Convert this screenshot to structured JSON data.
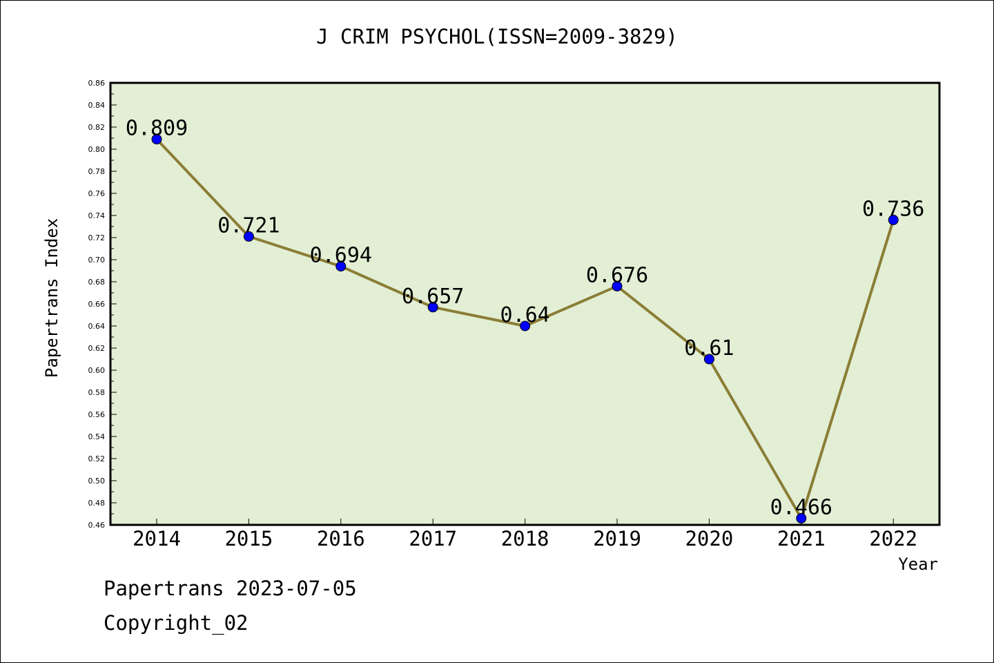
{
  "chart_data": {
    "type": "line",
    "title": "J CRIM PSYCHOL(ISSN=2009-3829)",
    "xlabel": "Year",
    "ylabel": "Papertrans Index",
    "categories": [
      "2014",
      "2015",
      "2016",
      "2017",
      "2018",
      "2019",
      "2020",
      "2021",
      "2022"
    ],
    "series": [
      {
        "values": [
          0.809,
          0.721,
          0.694,
          0.657,
          0.64,
          0.676,
          0.61,
          0.466,
          0.736
        ]
      }
    ],
    "data_labels": [
      "0.809",
      "0.721",
      "0.694",
      "0.657",
      "0.64",
      "0.676",
      "0.61",
      "0.466",
      "0.736"
    ],
    "ylim": [
      0.46,
      0.86
    ],
    "yticks": [
      "0.46",
      "0.48",
      "0.50",
      "0.52",
      "0.54",
      "0.56",
      "0.58",
      "0.60",
      "0.62",
      "0.64",
      "0.66",
      "0.68",
      "0.70",
      "0.72",
      "0.74",
      "0.76",
      "0.78",
      "0.80",
      "0.82",
      "0.84",
      "0.86"
    ],
    "grid": false,
    "colors": {
      "plot_bg": "#e2efd5",
      "line": "#8b7d36",
      "marker": "#0000ff"
    }
  },
  "footer": {
    "date_line": "Papertrans 2023-07-05",
    "copyright": "Copyright_02"
  }
}
